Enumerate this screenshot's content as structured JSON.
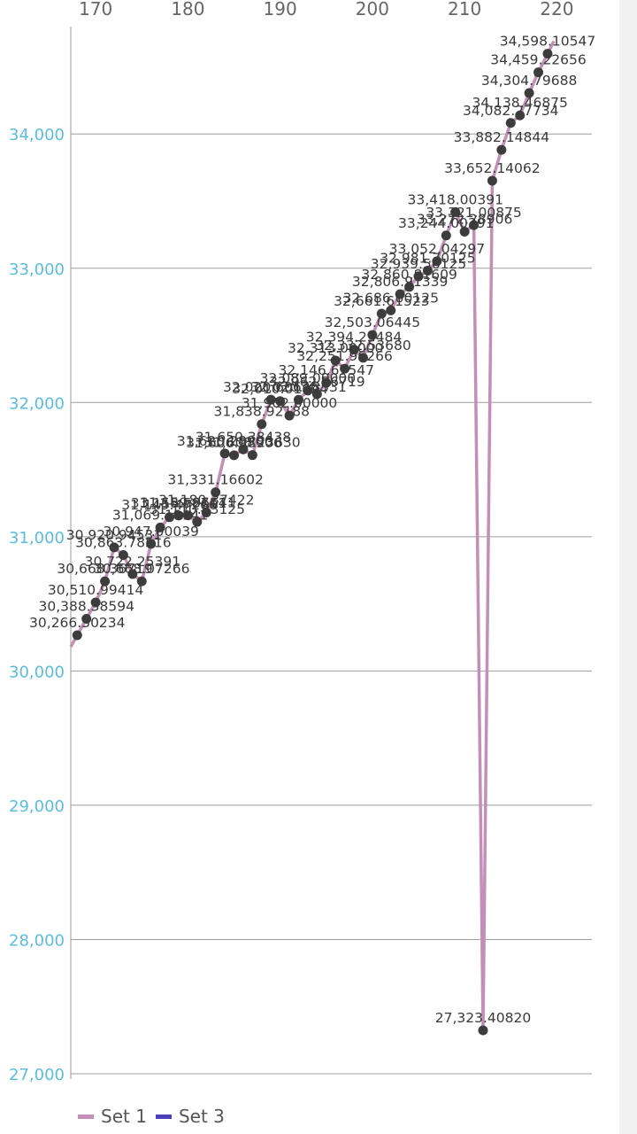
{
  "chart_data": {
    "type": "line",
    "xlim": [
      167.3,
      223.8
    ],
    "ylim": [
      27000,
      34800
    ],
    "xticks": [
      170,
      180,
      190,
      200,
      210,
      220
    ],
    "yticks": [
      27000,
      28000,
      29000,
      30000,
      31000,
      32000,
      33000,
      34000
    ],
    "xtick_labels": [
      "170",
      "180",
      "190",
      "200",
      "210",
      "220"
    ],
    "ytick_labels": [
      "27,000",
      "28,000",
      "29,000",
      "30,000",
      "31,000",
      "32,000",
      "33,000",
      "34,000"
    ],
    "grid": true,
    "legend_position": "bottom-left",
    "series": [
      {
        "name": "Set 1",
        "color": "#c38fb8",
        "x": [
          168,
          169,
          170,
          171,
          172,
          173,
          174,
          175,
          176,
          177,
          178,
          179,
          180,
          181,
          182,
          183,
          184,
          185,
          186,
          187,
          188,
          189,
          190,
          191,
          192,
          193,
          194,
          195,
          196,
          197,
          198,
          199,
          200,
          201,
          202,
          203,
          204,
          205,
          206,
          207,
          208,
          209,
          210,
          211,
          212,
          213,
          214,
          215,
          216,
          217,
          218,
          219
        ],
        "values": [
          30266.30234,
          30388.38594,
          30510.99414,
          30668.36719,
          30920.94531,
          30863.78516,
          30722.25391,
          30668.07266,
          30947.00039,
          31069.19141,
          31145.47266,
          31158.58711,
          31159.06641,
          31110.83125,
          31180.37422,
          31331.16602,
          31620.28906,
          31606.98906,
          31650.38438,
          31608.2363,
          31838.92188,
          32020.60625,
          32010.01094,
          31902.0,
          32020.18531,
          32089.0,
          32062.56719,
          32146.67547,
          32313.0,
          32251.96266,
          32394.23484,
          32332.5368,
          32503.06445,
          32661.61523,
          32686.00125,
          32806.91339,
          32860.81609,
          32939.56125,
          32981.70125,
          33052.04297,
          33244.00391,
          33418.00391,
          33272.28906,
          33321.00875,
          27323.4082,
          33652.14062,
          33882.14844,
          34082.27734,
          34138.46875,
          34304.79688,
          34459.22656,
          34598.10547
        ]
      },
      {
        "name": "Set 3",
        "color": "#4a3fb4",
        "x": [],
        "values": []
      }
    ],
    "data_labels": [
      "30,266.30234",
      "30,388.38594",
      "30,510.99414",
      "30,668.36719",
      "30,920.94531",
      "30,863.78516",
      "30,722.25391",
      "30,668.07266",
      "30,947.00039",
      "31,069.19141",
      "31,145.47266",
      "31,158.58711",
      "31,159.06641",
      "31,110.83125",
      "31,180.37422",
      "31,331.16602",
      "31,620.28906",
      "31,606.98906",
      "31,650.38438",
      "31,608.23630",
      "31,838.92188",
      "32,020.60625",
      "32,010.01094",
      "31,902.00000",
      "32,020.18531",
      "32,089.00000",
      "32,062.56719",
      "32,146.67547",
      "32,313.00000",
      "32,251.96266",
      "32,394.23484",
      "32,332.53680",
      "32,503.06445",
      "32,661.61523",
      "32,686.00125",
      "32,806.91339",
      "32,860.81609",
      "32,939.56125",
      "32,981.70125",
      "33,052.04297",
      "33,244.00391",
      "33,418.00391",
      "33,272.28906",
      "33,321.00875",
      "27,323.40820",
      "33,652.14062",
      "33,882.14844",
      "34,082.27734",
      "34,138.46875",
      "34,304.79688",
      "34,459.22656",
      "34,598.10547"
    ],
    "point_color": "#3d3d3d",
    "grid_color": "#9e9e9e",
    "axis_tick_color": "#5bbde0"
  }
}
